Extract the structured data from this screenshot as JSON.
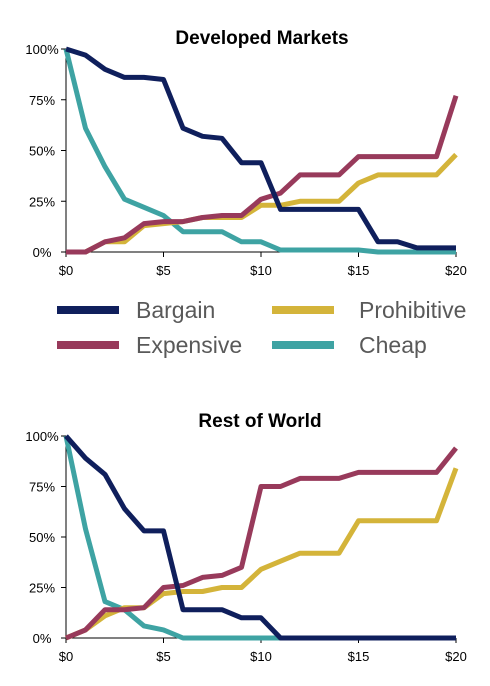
{
  "chart_data": [
    {
      "type": "line",
      "title": "Developed Markets",
      "x": [
        0,
        1,
        2,
        3,
        4,
        5,
        6,
        7,
        8,
        9,
        10,
        11,
        12,
        13,
        14,
        15,
        16,
        17,
        18,
        19,
        20
      ],
      "xticks": [
        "$0",
        "$5",
        "$10",
        "$15",
        "$20"
      ],
      "xtick_values": [
        0,
        5,
        10,
        15,
        20
      ],
      "yticks": [
        "0%",
        "25%",
        "50%",
        "75%",
        "100%"
      ],
      "ytick_values": [
        0,
        25,
        50,
        75,
        100
      ],
      "xlim": [
        0,
        20
      ],
      "ylim": [
        0,
        100
      ],
      "grid": false,
      "series": [
        {
          "name": "Bargain",
          "color": "#0f1f5c",
          "values": [
            100,
            97,
            90,
            86,
            86,
            85,
            61,
            57,
            56,
            44,
            44,
            21,
            21,
            21,
            21,
            21,
            5,
            5,
            2,
            2,
            2
          ]
        },
        {
          "name": "Expensive",
          "color": "#983a5b",
          "values": [
            0,
            0,
            5,
            7,
            14,
            15,
            15,
            17,
            18,
            18,
            26,
            29,
            38,
            38,
            38,
            47,
            47,
            47,
            47,
            47,
            77
          ]
        },
        {
          "name": "Prohibitive",
          "color": "#d4b43a",
          "values": [
            0,
            0,
            5,
            5,
            13,
            14,
            15,
            17,
            17,
            17,
            23,
            23,
            25,
            25,
            25,
            34,
            38,
            38,
            38,
            38,
            48
          ]
        },
        {
          "name": "Cheap",
          "color": "#3ea3a3",
          "values": [
            100,
            61,
            42,
            26,
            22,
            18,
            10,
            10,
            10,
            5,
            5,
            1,
            1,
            1,
            1,
            1,
            0,
            0,
            0,
            0,
            0
          ]
        }
      ]
    },
    {
      "type": "line",
      "title": "Rest of World",
      "x": [
        0,
        1,
        2,
        3,
        4,
        5,
        6,
        7,
        8,
        9,
        10,
        11,
        12,
        13,
        14,
        15,
        16,
        17,
        18,
        19,
        20
      ],
      "xticks": [
        "$0",
        "$5",
        "$10",
        "$15",
        "$20"
      ],
      "xtick_values": [
        0,
        5,
        10,
        15,
        20
      ],
      "yticks": [
        "0%",
        "25%",
        "50%",
        "75%",
        "100%"
      ],
      "ytick_values": [
        0,
        25,
        50,
        75,
        100
      ],
      "xlim": [
        0,
        20
      ],
      "ylim": [
        0,
        100
      ],
      "grid": false,
      "series": [
        {
          "name": "Bargain",
          "color": "#0f1f5c",
          "values": [
            100,
            89,
            81,
            64,
            53,
            53,
            14,
            14,
            14,
            10,
            10,
            0,
            0,
            0,
            0,
            0,
            0,
            0,
            0,
            0,
            0
          ]
        },
        {
          "name": "Expensive",
          "color": "#983a5b",
          "values": [
            0,
            4,
            14,
            14,
            15,
            25,
            26,
            30,
            31,
            35,
            75,
            75,
            79,
            79,
            79,
            82,
            82,
            82,
            82,
            82,
            94
          ]
        },
        {
          "name": "Prohibitive",
          "color": "#d4b43a",
          "values": [
            0,
            4,
            11,
            15,
            15,
            22,
            23,
            23,
            25,
            25,
            34,
            38,
            42,
            42,
            42,
            58,
            58,
            58,
            58,
            58,
            84
          ]
        },
        {
          "name": "Cheap",
          "color": "#3ea3a3",
          "values": [
            100,
            54,
            18,
            14,
            6,
            4,
            0,
            0,
            0,
            0,
            0,
            0,
            0,
            0,
            0,
            0,
            0,
            0,
            0,
            0,
            0
          ]
        }
      ]
    }
  ],
  "legend": {
    "placement": "between charts",
    "items": [
      {
        "label": "Bargain",
        "color": "#0f1f5c"
      },
      {
        "label": "Prohibitive",
        "color": "#d4b43a"
      },
      {
        "label": "Expensive",
        "color": "#983a5b"
      },
      {
        "label": "Cheap",
        "color": "#3ea3a3"
      }
    ]
  }
}
